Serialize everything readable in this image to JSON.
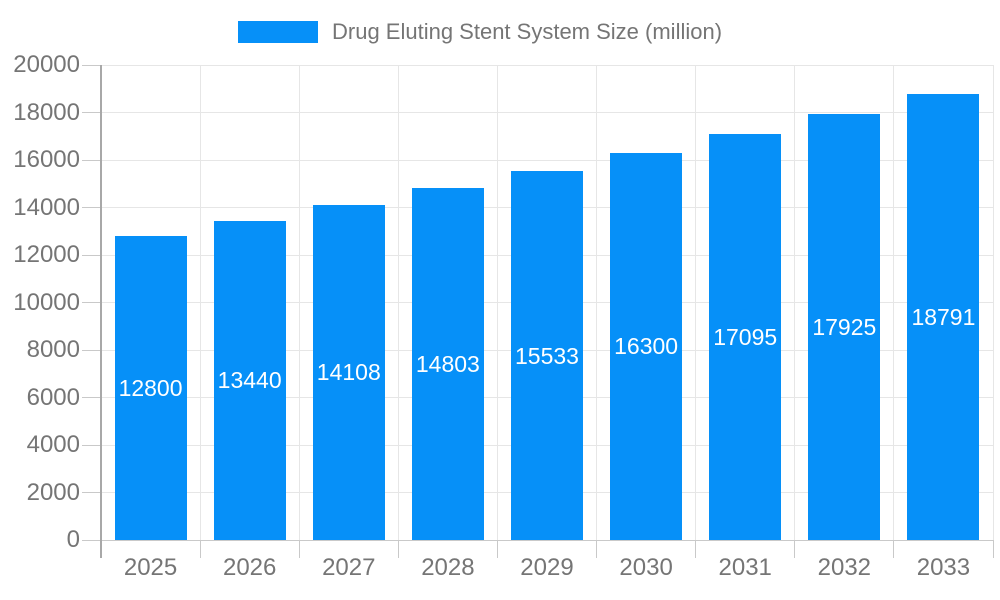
{
  "chart_data": {
    "type": "bar",
    "title": "Drug Eluting Stent System Size (million)",
    "legend_position": "top",
    "categories": [
      "2025",
      "2026",
      "2027",
      "2028",
      "2029",
      "2030",
      "2031",
      "2032",
      "2033"
    ],
    "values": [
      12800,
      13440,
      14108,
      14803,
      15533,
      16300,
      17095,
      17925,
      18791
    ],
    "xlabel": "",
    "ylabel": "",
    "ylim": [
      0,
      20000
    ],
    "yticks": [
      0,
      2000,
      4000,
      6000,
      8000,
      10000,
      12000,
      14000,
      16000,
      18000,
      20000
    ],
    "grid": true,
    "colors": {
      "bar": "#0690f8",
      "bar_value_text": "#ffffff",
      "axis_text": "#757575",
      "legend_text": "#757575",
      "gridline": "#e6e6e6",
      "baseline": "#c9c9c9",
      "tick": "#c9c9c9",
      "y_axis_line": "#a8a8a8",
      "background": "#ffffff"
    }
  }
}
